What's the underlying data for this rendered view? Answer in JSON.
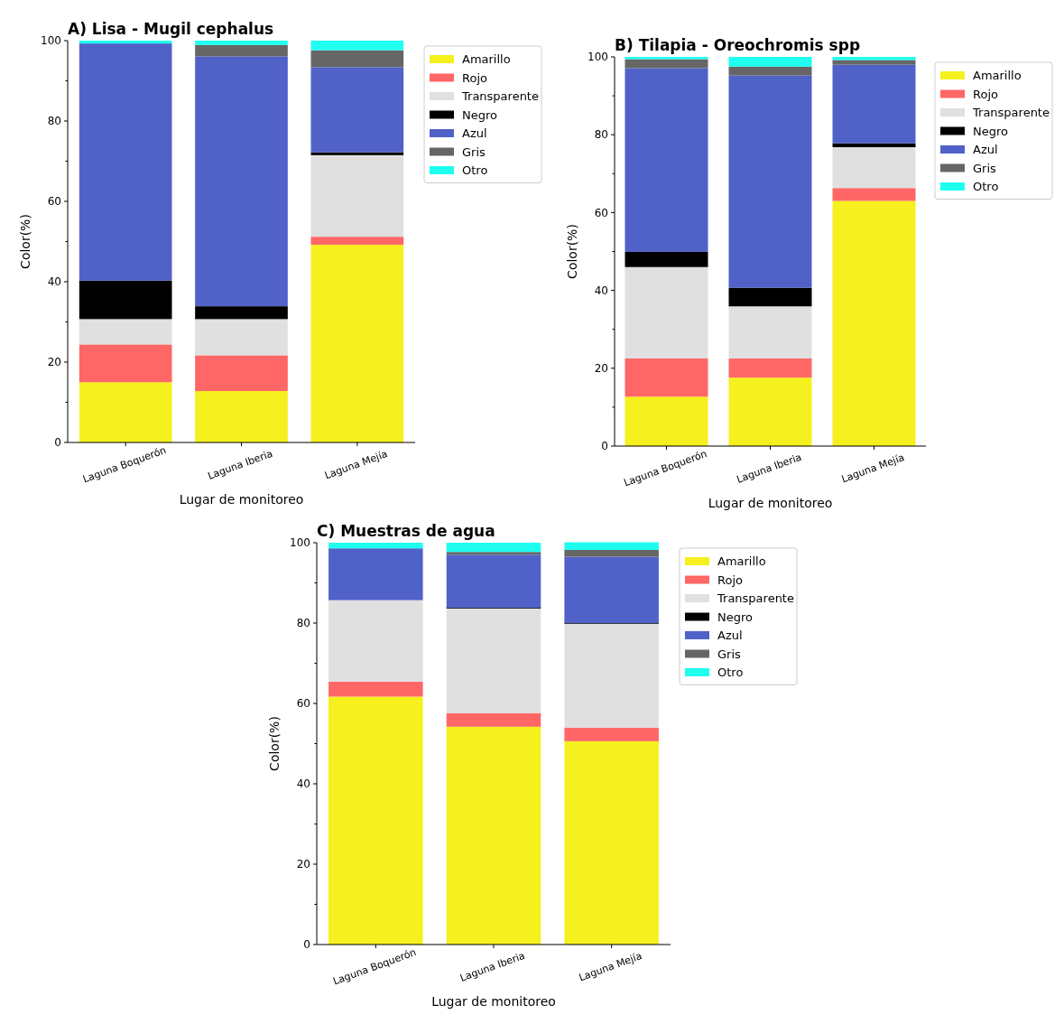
{
  "chart_data": [
    {
      "type": "bar",
      "title": "A) Lisa - Mugil cephalus",
      "xlabel": "Lugar de monitoreo",
      "ylabel": "Color(%)",
      "stacked": true,
      "legend": "top right",
      "categories": [
        "Laguna Boquerón",
        "Laguna Iberia",
        "Laguna Mejía"
      ],
      "ylim": [
        0,
        100
      ],
      "yticks": [
        0,
        {
          "value": 10,
          "label": null
        },
        20,
        {
          "value": 30,
          "label": null
        },
        40,
        {
          "value": 50,
          "label": null
        },
        60,
        {
          "value": 70,
          "label": null
        },
        80,
        {
          "value": 90,
          "label": null
        },
        100
      ],
      "series": [
        {
          "name": "Amarillo",
          "color": "#f5f01e",
          "values": [
            15.0,
            12.8,
            49.2
          ]
        },
        {
          "name": "Rojo",
          "color": "#ff6666",
          "values": [
            9.4,
            8.9,
            2.0
          ]
        },
        {
          "name": "Transparente",
          "color": "#e0e0e0",
          "values": [
            6.3,
            9.0,
            20.3
          ]
        },
        {
          "name": "Negro",
          "color": "#000000",
          "values": [
            9.6,
            3.2,
            0.7
          ]
        },
        {
          "name": "Azul",
          "color": "#5062c8",
          "values": [
            59.0,
            62.2,
            21.2
          ]
        },
        {
          "name": "Gris",
          "color": "#666666",
          "values": [
            0,
            2.8,
            4.2
          ]
        },
        {
          "name": "Otro",
          "color": "#1ffff0",
          "values": [
            0.7,
            1.1,
            2.4
          ]
        }
      ]
    },
    {
      "type": "bar",
      "title": "B) Tilapia - Oreochromis spp",
      "xlabel": "Lugar de monitoreo",
      "ylabel": "Color(%)",
      "stacked": true,
      "legend": "top right",
      "categories": [
        "Laguna Boquerón",
        "Laguna Iberia",
        "Laguna Mejía"
      ],
      "ylim": [
        0,
        100
      ],
      "yticks": [
        0,
        {
          "value": 10,
          "label": null
        },
        20,
        {
          "value": 30,
          "label": null
        },
        40,
        {
          "value": 50,
          "label": null
        },
        60,
        {
          "value": 70,
          "label": null
        },
        80,
        {
          "value": 90,
          "label": null
        },
        100
      ],
      "series": [
        {
          "name": "Amarillo",
          "color": "#f5f01e",
          "values": [
            12.7,
            17.6,
            63.0
          ]
        },
        {
          "name": "Rojo",
          "color": "#ff6666",
          "values": [
            9.8,
            4.9,
            3.3
          ]
        },
        {
          "name": "Transparente",
          "color": "#e0e0e0",
          "values": [
            23.5,
            13.4,
            10.5
          ]
        },
        {
          "name": "Negro",
          "color": "#000000",
          "values": [
            3.9,
            4.8,
            1.0
          ]
        },
        {
          "name": "Azul",
          "color": "#5062c8",
          "values": [
            47.2,
            54.5,
            20.2
          ]
        },
        {
          "name": "Gris",
          "color": "#666666",
          "values": [
            2.3,
            2.3,
            1.2
          ]
        },
        {
          "name": "Otro",
          "color": "#1ffff0",
          "values": [
            0.6,
            2.5,
            0.8
          ]
        }
      ]
    },
    {
      "type": "bar",
      "title": "C) Muestras de agua",
      "xlabel": "Lugar de monitoreo",
      "ylabel": "Color(%)",
      "stacked": true,
      "legend": "top right",
      "categories": [
        "Laguna Boquerón",
        "Laguna Iberia",
        "Laguna Mejía"
      ],
      "ylim": [
        0,
        100
      ],
      "yticks": [
        0,
        {
          "value": 10,
          "label": null
        },
        20,
        {
          "value": 30,
          "label": null
        },
        40,
        {
          "value": 50,
          "label": null
        },
        60,
        {
          "value": 70,
          "label": null
        },
        80,
        {
          "value": 90,
          "label": null
        },
        100
      ],
      "series": [
        {
          "name": "Amarillo",
          "color": "#f5f01e",
          "values": [
            61.7,
            54.2,
            50.6
          ]
        },
        {
          "name": "Rojo",
          "color": "#ff6666",
          "values": [
            3.7,
            3.4,
            3.4
          ]
        },
        {
          "name": "Transparente",
          "color": "#e0e0e0",
          "values": [
            20.3,
            26.1,
            25.9
          ]
        },
        {
          "name": "Negro",
          "color": "#000000",
          "values": [
            0,
            0.1,
            0.1
          ]
        },
        {
          "name": "Azul",
          "color": "#5062c8",
          "values": [
            12.9,
            13.2,
            16.5
          ]
        },
        {
          "name": "Gris",
          "color": "#666666",
          "values": [
            0,
            0.7,
            1.7
          ]
        },
        {
          "name": "Otro",
          "color": "#1ffff0",
          "values": [
            1.4,
            2.3,
            1.9
          ]
        }
      ]
    }
  ]
}
